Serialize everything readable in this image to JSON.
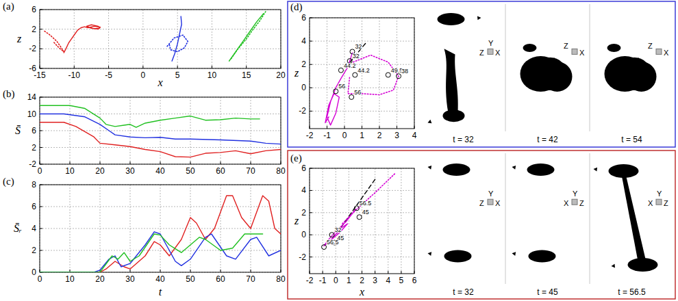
{
  "chart_data": [
    {
      "panel": "(a)",
      "type": "line",
      "xlabel": "x",
      "ylabel": "z",
      "xlim": [
        -15,
        20
      ],
      "ylim": [
        -6,
        6
      ],
      "xticks": [
        -15,
        -10,
        -5,
        0,
        5,
        10,
        15,
        20
      ],
      "yticks": [
        -6,
        -2,
        2,
        6
      ],
      "grid": true,
      "series": [
        {
          "color": "#e02020",
          "line_style": "solid",
          "x": [
            -11.5,
            -11.2,
            -10.8,
            -10.5,
            -10,
            -9.5,
            -9,
            -8.5,
            -8,
            -7,
            -6.2,
            -6.5,
            -7.5,
            -8.2,
            -7.5,
            -6.5,
            -6.3,
            -7.2,
            -8
          ],
          "values": [
            -2.8,
            -2,
            -0.8,
            -0.2,
            0.8,
            1.8,
            2.3,
            2.5,
            2.3,
            2.6,
            2.4,
            2,
            2.2,
            2.6,
            2.9,
            2.6,
            2.2,
            2.1,
            2.5
          ]
        },
        {
          "color": "#e02020",
          "line_style": "dotted",
          "x": [
            -14.3,
            -13.5,
            -12.5,
            -12,
            -11.5,
            -12.2,
            -13
          ],
          "values": [
            1.6,
            0.8,
            -0.5,
            -1.5,
            -2.6,
            -1.8,
            -0.6
          ]
        },
        {
          "color": "#2030e0",
          "line_style": "solid",
          "x": [
            4.2,
            4.6,
            5,
            5.3,
            5.6,
            5.5
          ],
          "values": [
            -4.5,
            -3,
            -1,
            1,
            3,
            4.6
          ]
        },
        {
          "color": "#2030e0",
          "line_style": "dotted",
          "x": [
            3.5,
            4.5,
            5.8,
            6.5,
            6,
            5,
            4,
            3.8
          ],
          "values": [
            -1.5,
            0.2,
            0.8,
            -0.5,
            -1.8,
            -2.6,
            -2.2,
            -1
          ]
        },
        {
          "color": "#20c020",
          "line_style": "solid",
          "x": [
            12.5,
            13.5,
            14.5,
            15.5,
            16.5,
            17.5
          ],
          "values": [
            -4.5,
            -2.5,
            -0.5,
            1.5,
            3.5,
            5.2
          ]
        },
        {
          "color": "#20c020",
          "line_style": "dotted",
          "x": [
            12.8,
            13.8,
            15,
            16,
            17,
            17.8
          ],
          "values": [
            -4,
            -2,
            0,
            2,
            3.8,
            5.6
          ]
        }
      ]
    },
    {
      "panel": "(b)",
      "type": "line",
      "ylabel": "S̄",
      "xlim": [
        0,
        80
      ],
      "ylim": [
        -2,
        14
      ],
      "xticks": [
        0,
        10,
        20,
        30,
        40,
        50,
        60,
        70,
        80
      ],
      "yticks": [
        -2,
        2,
        6,
        10,
        14
      ],
      "grid": true,
      "series": [
        {
          "color": "#20c020",
          "line_style": "solid",
          "x": [
            0,
            10,
            15,
            20,
            22,
            25,
            28,
            30,
            32,
            35,
            40,
            45,
            50,
            55,
            60,
            65,
            70,
            73
          ],
          "values": [
            12,
            12,
            11.3,
            9,
            7.5,
            7,
            7.3,
            7.5,
            6.8,
            7.8,
            8.5,
            9,
            9.5,
            8.5,
            8.6,
            9,
            8.8,
            8.8
          ]
        },
        {
          "color": "#2030e0",
          "line_style": "solid",
          "x": [
            0,
            8,
            15,
            20,
            23,
            25,
            30,
            35,
            40,
            45,
            50,
            60,
            70,
            75,
            80
          ],
          "values": [
            10,
            10,
            9.3,
            7.5,
            6,
            5,
            4.5,
            4.3,
            4.4,
            4,
            4,
            3.8,
            3.5,
            3,
            2.8
          ]
        },
        {
          "color": "#e02020",
          "line_style": "solid",
          "x": [
            0,
            8,
            12,
            18,
            20,
            25,
            30,
            35,
            40,
            45,
            50,
            55,
            60,
            65,
            70,
            75,
            80
          ],
          "values": [
            8,
            8,
            7,
            4.5,
            3,
            2.6,
            2.2,
            1.5,
            1,
            -0.2,
            -0.3,
            0.6,
            0.8,
            1.2,
            0.5,
            1.2,
            1.5
          ]
        }
      ]
    },
    {
      "panel": "(c)",
      "type": "line",
      "xlabel": "t",
      "ylabel": "S̄ᵣ",
      "xlim": [
        0,
        80
      ],
      "ylim": [
        0,
        8
      ],
      "xticks": [
        0,
        10,
        20,
        30,
        40,
        50,
        60,
        70,
        80
      ],
      "yticks": [
        0,
        2,
        4,
        6,
        8
      ],
      "grid": true,
      "series": [
        {
          "color": "#e02020",
          "line_style": "solid",
          "x": [
            0,
            20,
            22,
            25,
            28,
            30,
            35,
            38,
            40,
            43,
            47,
            50,
            52,
            55,
            58,
            62,
            64,
            67,
            70,
            74,
            76,
            78,
            80
          ],
          "values": [
            0,
            0,
            0.3,
            1,
            0.5,
            0.3,
            1.5,
            2.8,
            2.5,
            1.5,
            3,
            5,
            4.5,
            3,
            4,
            7,
            7,
            5,
            4,
            7,
            6.5,
            4,
            3.5
          ]
        },
        {
          "color": "#2030e0",
          "line_style": "solid",
          "x": [
            0,
            18,
            20,
            23,
            25,
            27,
            30,
            35,
            38,
            40,
            45,
            47,
            50,
            55,
            57,
            62,
            65,
            70,
            72,
            76,
            80
          ],
          "values": [
            0,
            0,
            0.2,
            1.2,
            1.5,
            0.5,
            0.8,
            2.5,
            3.7,
            3.5,
            1,
            0.6,
            1.2,
            3.2,
            3.5,
            1.5,
            1.2,
            3,
            3.2,
            1.5,
            2
          ]
        },
        {
          "color": "#20c020",
          "line_style": "solid",
          "x": [
            0,
            20,
            24,
            26,
            28,
            30,
            33,
            38,
            40,
            43,
            47,
            50,
            53,
            55,
            60,
            64,
            68,
            72,
            74
          ],
          "values": [
            0,
            0,
            1.5,
            1.2,
            1.8,
            1,
            1.5,
            3.5,
            3.4,
            2.5,
            1.8,
            2.5,
            3.2,
            3,
            2,
            2.2,
            3.5,
            3.5,
            3.5
          ]
        }
      ]
    },
    {
      "panel": "(d)",
      "type": "line",
      "ylabel": "z",
      "xlim": [
        -2,
        4
      ],
      "ylim": [
        -3.5,
        6
      ],
      "xticks": [
        -2,
        -1,
        0,
        1,
        2,
        3,
        4
      ],
      "yticks": [
        -2,
        0,
        2,
        4,
        6
      ],
      "grid": true,
      "series": [
        {
          "color": "#000000",
          "line_style": "dashed",
          "x": [
            1.2,
            0.2
          ],
          "values": [
            3.8,
            2
          ]
        },
        {
          "color": "#d400d4",
          "line_style": "solid",
          "x": [
            0.45,
            0.2,
            -0.2,
            -0.5,
            -0.8,
            -1,
            -0.8,
            -0.5,
            -0.3,
            -0.6,
            -0.9,
            -1.1,
            -0.9
          ],
          "values": [
            3,
            1.8,
            0.8,
            0,
            -1.2,
            -2.5,
            -3.2,
            -2.2,
            -0.8,
            -0.5,
            -1.5,
            -3,
            -2.5
          ]
        },
        {
          "color": "#d400d4",
          "line_style": "dotted",
          "x": [
            0.5,
            1.5,
            2.5,
            3.1,
            2.8,
            2,
            1,
            0.2,
            0.3
          ],
          "values": [
            2.2,
            2.8,
            2.2,
            1,
            -0.2,
            -0.6,
            -0.5,
            -0.5,
            1
          ]
        }
      ],
      "annotations": [
        {
          "x": 0.45,
          "y": 3.1,
          "text": "32"
        },
        {
          "x": 0.3,
          "y": 2.3,
          "text": "32"
        },
        {
          "x": -0.2,
          "y": 1.5,
          "text": "44.2"
        },
        {
          "x": -0.5,
          "y": -0.3,
          "text": "56"
        },
        {
          "x": 0.6,
          "y": 1.1,
          "text": "44.2"
        },
        {
          "x": 2.5,
          "y": 1.1,
          "text": "49.5"
        },
        {
          "x": 3.1,
          "y": 1,
          "text": "38"
        },
        {
          "x": 0.4,
          "y": -0.8,
          "text": "56"
        }
      ],
      "snapshots": [
        {
          "time": "t = 32",
          "axes": [
            "Y",
            "Z",
            "X"
          ]
        },
        {
          "time": "t = 42",
          "axes": [
            "Z",
            "X"
          ]
        },
        {
          "time": "t = 54",
          "axes": [
            "Z",
            "X"
          ]
        }
      ]
    },
    {
      "panel": "(e)",
      "type": "line",
      "xlabel": "x",
      "ylabel": "z",
      "xlim": [
        -2,
        6
      ],
      "ylim": [
        -3.5,
        6
      ],
      "xticks": [
        -2,
        -1,
        0,
        1,
        2,
        3,
        4,
        5,
        6
      ],
      "yticks": [
        -2,
        0,
        2,
        4,
        6
      ],
      "grid": true,
      "series": [
        {
          "color": "#000000",
          "line_style": "dashed",
          "x": [
            3,
            0
          ],
          "values": [
            5,
            0
          ]
        },
        {
          "color": "#d400d4",
          "line_style": "dotted",
          "x": [
            4.5,
            3,
            1.5,
            0.5
          ],
          "values": [
            5.5,
            3.8,
            2.2,
            1
          ]
        },
        {
          "color": "#d400d4",
          "line_style": "solid",
          "x": [
            1.5,
            0.8,
            0,
            -0.6,
            -0.9,
            -0.4,
            0.4,
            0.9,
            0.3,
            -0.5,
            -0.9
          ],
          "values": [
            2.3,
            1.2,
            0.3,
            -0.5,
            -1,
            -0.5,
            0.6,
            1,
            0.2,
            -0.6,
            -1
          ]
        }
      ],
      "annotations": [
        {
          "x": 1.6,
          "y": 2.4,
          "text": "56.5"
        },
        {
          "x": 1.8,
          "y": 1.6,
          "text": "45"
        },
        {
          "x": -0.3,
          "y": 0,
          "text": "32"
        },
        {
          "x": -0.1,
          "y": -0.7,
          "text": "45"
        },
        {
          "x": -0.9,
          "y": -1.1,
          "text": "56.5"
        }
      ],
      "snapshots": [
        {
          "time": "t = 32",
          "axes": [
            "Y",
            "Z",
            "X"
          ]
        },
        {
          "time": "t = 45",
          "axes": [
            "Y",
            "X",
            "Z"
          ]
        },
        {
          "time": "t = 56.5",
          "axes": [
            "Y",
            "X",
            "Z"
          ]
        }
      ]
    }
  ]
}
